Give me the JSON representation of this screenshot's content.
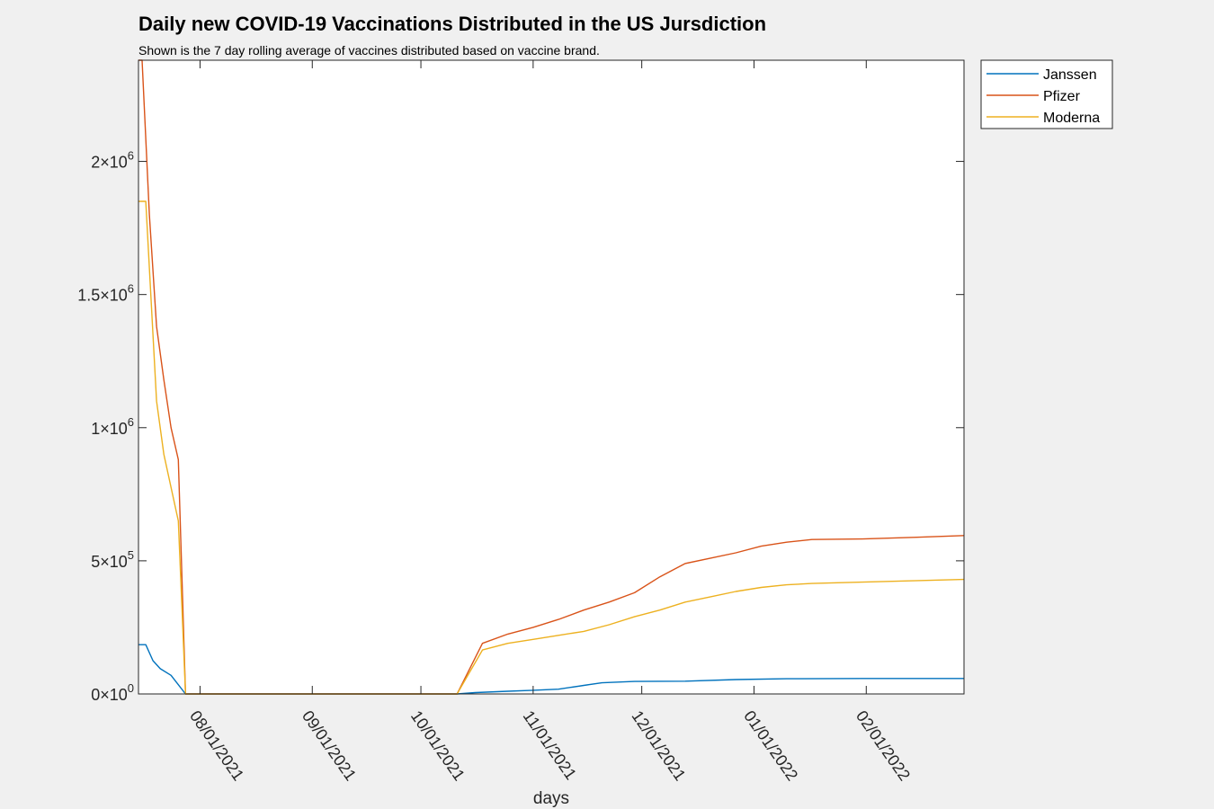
{
  "chart_data": {
    "type": "line",
    "title": "Daily new COVID-19 Vaccinations Distributed in the US Jursdiction",
    "subtitle": "Shown is the 7 day rolling average of vaccines distributed based on vaccine brand.",
    "xlabel": "days",
    "ylabel": "",
    "xlim": [
      "2021-07-15",
      "2022-02-28"
    ],
    "ylim": [
      0,
      2380000
    ],
    "y_ticks": [
      {
        "value": 0,
        "mantissa": "0",
        "exponent": "0"
      },
      {
        "value": 500000,
        "mantissa": "5",
        "exponent": "5"
      },
      {
        "value": 1000000,
        "mantissa": "1",
        "exponent": "6"
      },
      {
        "value": 1500000,
        "mantissa": "1.5",
        "exponent": "6"
      },
      {
        "value": 2000000,
        "mantissa": "2",
        "exponent": "6"
      }
    ],
    "x_ticks": [
      {
        "date": "2021-08-01",
        "label": "08/01/2021"
      },
      {
        "date": "2021-09-01",
        "label": "09/01/2021"
      },
      {
        "date": "2021-10-01",
        "label": "10/01/2021"
      },
      {
        "date": "2021-11-01",
        "label": "11/01/2021"
      },
      {
        "date": "2021-12-01",
        "label": "12/01/2021"
      },
      {
        "date": "2022-01-01",
        "label": "01/01/2022"
      },
      {
        "date": "2022-02-01",
        "label": "02/01/2022"
      }
    ],
    "grid": false,
    "legend_position": "outside-top-right",
    "series": [
      {
        "name": "Janssen",
        "color": "#0072BD",
        "points": [
          [
            "2021-07-15",
            185000
          ],
          [
            "2021-07-17",
            185000
          ],
          [
            "2021-07-19",
            125000
          ],
          [
            "2021-07-21",
            95000
          ],
          [
            "2021-07-24",
            70000
          ],
          [
            "2021-07-28",
            0
          ],
          [
            "2021-10-11",
            0
          ],
          [
            "2021-10-16",
            5000
          ],
          [
            "2021-10-25",
            10000
          ],
          [
            "2021-11-01",
            14000
          ],
          [
            "2021-11-08",
            18000
          ],
          [
            "2021-11-15",
            32000
          ],
          [
            "2021-11-20",
            42000
          ],
          [
            "2021-11-29",
            47000
          ],
          [
            "2021-12-13",
            48000
          ],
          [
            "2021-12-27",
            54000
          ],
          [
            "2022-01-10",
            57000
          ],
          [
            "2022-01-31",
            58000
          ],
          [
            "2022-02-28",
            58000
          ]
        ]
      },
      {
        "name": "Pfizer",
        "color": "#D95319",
        "points": [
          [
            "2021-07-15",
            2380000
          ],
          [
            "2021-07-16",
            2380000
          ],
          [
            "2021-07-18",
            1800000
          ],
          [
            "2021-07-20",
            1380000
          ],
          [
            "2021-07-22",
            1180000
          ],
          [
            "2021-07-24",
            1000000
          ],
          [
            "2021-07-26",
            880000
          ],
          [
            "2021-07-28",
            0
          ],
          [
            "2021-10-11",
            0
          ],
          [
            "2021-10-18",
            190000
          ],
          [
            "2021-10-25",
            225000
          ],
          [
            "2021-11-01",
            250000
          ],
          [
            "2021-11-08",
            280000
          ],
          [
            "2021-11-15",
            315000
          ],
          [
            "2021-11-22",
            345000
          ],
          [
            "2021-11-29",
            380000
          ],
          [
            "2021-12-06",
            440000
          ],
          [
            "2021-12-13",
            490000
          ],
          [
            "2021-12-20",
            510000
          ],
          [
            "2021-12-27",
            530000
          ],
          [
            "2022-01-03",
            555000
          ],
          [
            "2022-01-10",
            570000
          ],
          [
            "2022-01-17",
            580000
          ],
          [
            "2022-01-31",
            582000
          ],
          [
            "2022-02-14",
            588000
          ],
          [
            "2022-02-28",
            595000
          ]
        ]
      },
      {
        "name": "Moderna",
        "color": "#EDB120",
        "points": [
          [
            "2021-07-15",
            1850000
          ],
          [
            "2021-07-17",
            1850000
          ],
          [
            "2021-07-18",
            1600000
          ],
          [
            "2021-07-20",
            1100000
          ],
          [
            "2021-07-22",
            900000
          ],
          [
            "2021-07-26",
            650000
          ],
          [
            "2021-07-28",
            0
          ],
          [
            "2021-10-11",
            0
          ],
          [
            "2021-10-18",
            165000
          ],
          [
            "2021-10-25",
            190000
          ],
          [
            "2021-11-01",
            205000
          ],
          [
            "2021-11-08",
            220000
          ],
          [
            "2021-11-15",
            235000
          ],
          [
            "2021-11-22",
            260000
          ],
          [
            "2021-11-29",
            290000
          ],
          [
            "2021-12-06",
            315000
          ],
          [
            "2021-12-13",
            345000
          ],
          [
            "2021-12-20",
            365000
          ],
          [
            "2021-12-27",
            385000
          ],
          [
            "2022-01-03",
            400000
          ],
          [
            "2022-01-10",
            410000
          ],
          [
            "2022-01-17",
            415000
          ],
          [
            "2022-01-31",
            420000
          ],
          [
            "2022-02-14",
            425000
          ],
          [
            "2022-02-28",
            430000
          ]
        ]
      }
    ]
  }
}
